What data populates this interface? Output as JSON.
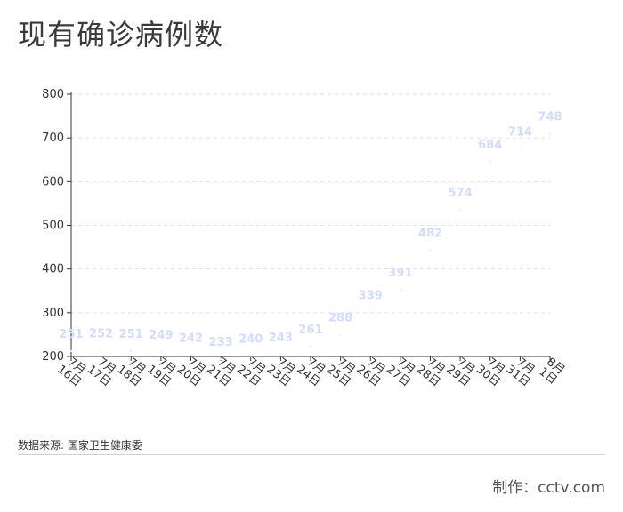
{
  "page": {
    "title": "现有确诊病例数",
    "source": "数据来源: 国家卫生健康委",
    "producer": "制作：cctv.com"
  },
  "colors": {
    "axis": "#333333",
    "grid": "#e3e3e3",
    "data_label": "#d4dcf7",
    "point": "#eeeeee"
  },
  "chart_data": {
    "type": "line",
    "title": "现有确诊病例数",
    "xlabel": "",
    "ylabel": "",
    "ylim": [
      200,
      800
    ],
    "yticks": [
      200,
      300,
      400,
      500,
      600,
      700,
      800
    ],
    "grid": "horizontal dashed",
    "categories": [
      [
        "7月16日",
        "7月",
        "16日"
      ],
      [
        "7月17日",
        "7月",
        "17日"
      ],
      [
        "7月18日",
        "7月",
        "18日"
      ],
      [
        "7月19日",
        "7月",
        "19日"
      ],
      [
        "7月20日",
        "7月",
        "20日"
      ],
      [
        "7月21日",
        "7月",
        "21日"
      ],
      [
        "7月22日",
        "7月",
        "22日"
      ],
      [
        "7月23日",
        "7月",
        "23日"
      ],
      [
        "7月24日",
        "7月",
        "24日"
      ],
      [
        "7月25日",
        "7月",
        "25日"
      ],
      [
        "7月26日",
        "7月",
        "26日"
      ],
      [
        "7月27日",
        "7月",
        "27日"
      ],
      [
        "7月28日",
        "7月",
        "28日"
      ],
      [
        "7月29日",
        "7月",
        "29日"
      ],
      [
        "7月30日",
        "7月",
        "30日"
      ],
      [
        "7月31日",
        "7月",
        "31日"
      ],
      [
        "8月1日",
        "8月",
        "1日"
      ]
    ],
    "values": [
      251,
      252,
      251,
      249,
      242,
      233,
      240,
      243,
      261,
      288,
      339,
      391,
      482,
      574,
      684,
      714,
      748
    ]
  }
}
